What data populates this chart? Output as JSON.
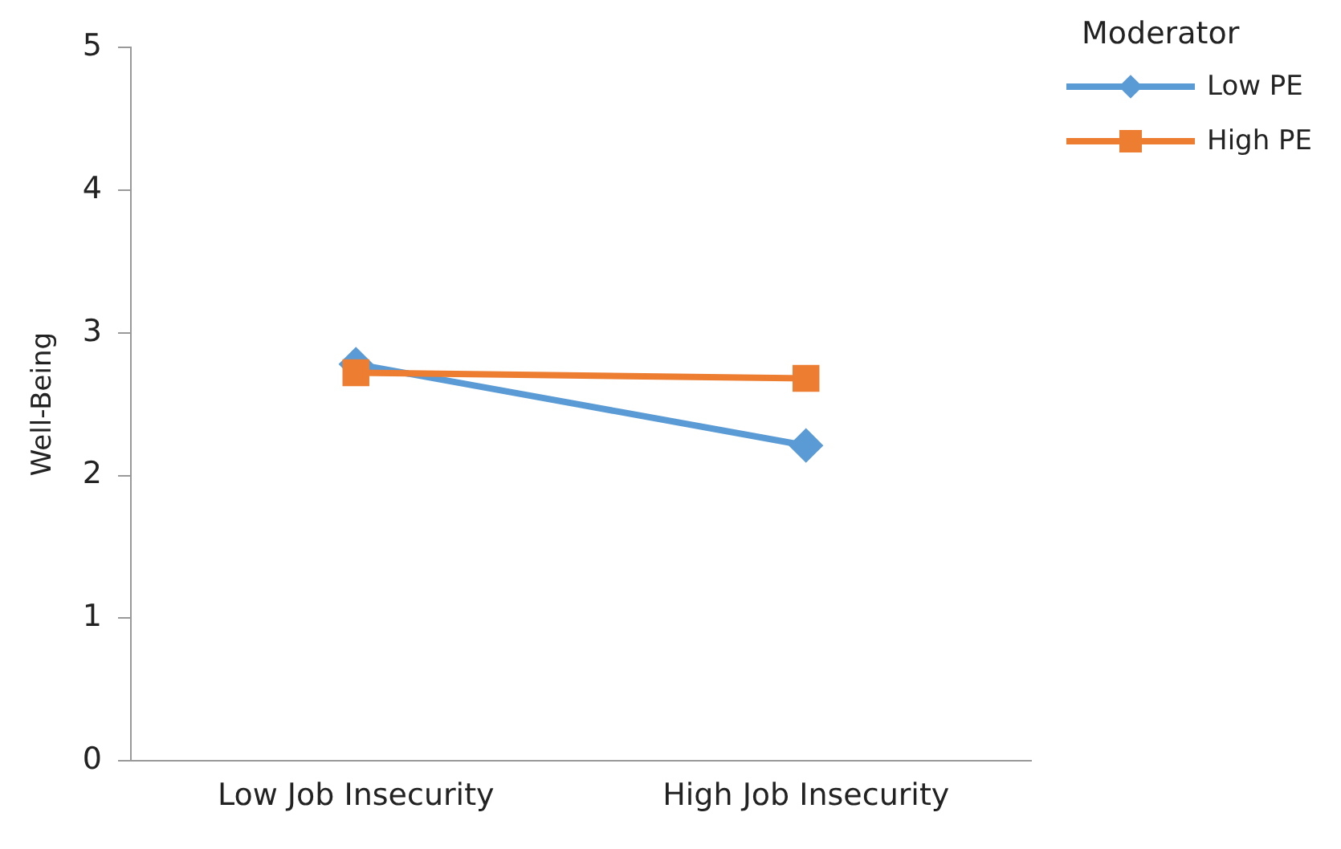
{
  "chart_data": {
    "type": "line",
    "ylabel": "Well-Being",
    "legend_title": "Moderator",
    "categories": [
      "Low Job Insecurity",
      "High Job Insecurity"
    ],
    "series": [
      {
        "name": "Low PE",
        "color": "#5b9bd5",
        "marker": "diamond",
        "values": [
          2.78,
          2.21
        ]
      },
      {
        "name": "High PE",
        "color": "#ed7d31",
        "marker": "square",
        "values": [
          2.72,
          2.68
        ]
      }
    ],
    "ylim": [
      0,
      5
    ],
    "yticks": [
      0,
      1,
      2,
      3,
      4,
      5
    ],
    "grid": false,
    "legend": "top right"
  }
}
